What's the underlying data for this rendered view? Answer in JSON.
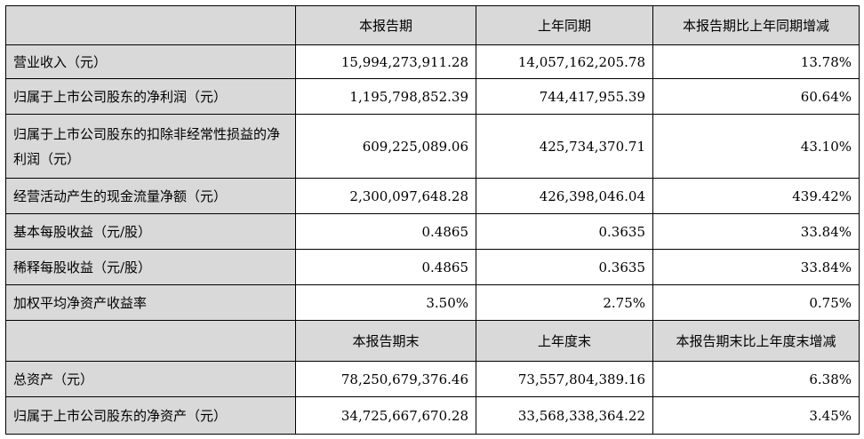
{
  "header1": [
    "",
    "本报告期",
    "上年同期",
    "本报告期比上年同期增减"
  ],
  "rows1": [
    {
      "label": "营业收入（元）",
      "current": "15,994,273,911.28",
      "prior": "14,057,162,205.78",
      "change": "13.78%"
    },
    {
      "label": "归属于上市公司股东的净利润（元）",
      "current": "1,195,798,852.39",
      "prior": "744,417,955.39",
      "change": "60.64%"
    },
    {
      "label": "归属于上市公司股东的扣除非经常性损益的净利润（元）",
      "current": "609,225,089.06",
      "prior": "425,734,370.71",
      "change": "43.10%"
    },
    {
      "label": "经营活动产生的现金流量净额（元）",
      "current": "2,300,097,648.28",
      "prior": "426,398,046.04",
      "change": "439.42%"
    },
    {
      "label": "基本每股收益（元/股）",
      "current": "0.4865",
      "prior": "0.3635",
      "change": "33.84%"
    },
    {
      "label": "稀释每股收益（元/股）",
      "current": "0.4865",
      "prior": "0.3635",
      "change": "33.84%"
    },
    {
      "label": "加权平均净资产收益率",
      "current": "3.50%",
      "prior": "2.75%",
      "change": "0.75%"
    }
  ],
  "header2": [
    "",
    "本报告期末",
    "上年度末",
    "本报告期末比上年度末增减"
  ],
  "rows2": [
    {
      "label": "总资产（元）",
      "current": "78,250,679,376.46",
      "prior": "73,557,804,389.16",
      "change": "6.38%"
    },
    {
      "label": "归属于上市公司股东的净资产（元）",
      "current": "34,725,667,670.28",
      "prior": "33,568,338,364.22",
      "change": "3.45%"
    }
  ]
}
